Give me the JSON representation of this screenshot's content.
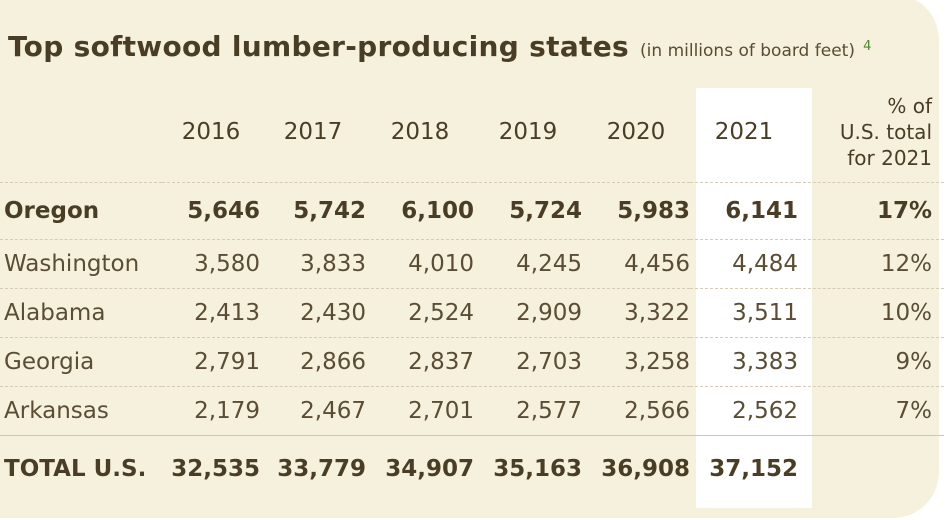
{
  "title": "Top softwood lumber-producing states",
  "subtitle": "(in millions of board feet)",
  "footnote": "4",
  "table": {
    "headers": [
      "2016",
      "2017",
      "2018",
      "2019",
      "2020",
      "2021"
    ],
    "pct_header": [
      "% of",
      "U.S. total",
      "for 2021"
    ],
    "rows": [
      {
        "state": "Oregon",
        "values": [
          "5,646",
          "5,742",
          "6,100",
          "5,724",
          "5,983",
          "6,141"
        ],
        "pct": "17%"
      },
      {
        "state": "Washington",
        "values": [
          "3,580",
          "3,833",
          "4,010",
          "4,245",
          "4,456",
          "4,484"
        ],
        "pct": "12%"
      },
      {
        "state": "Alabama",
        "values": [
          "2,413",
          "2,430",
          "2,524",
          "2,909",
          "3,322",
          "3,511"
        ],
        "pct": "10%"
      },
      {
        "state": "Georgia",
        "values": [
          "2,791",
          "2,866",
          "2,837",
          "2,703",
          "3,258",
          "3,383"
        ],
        "pct": "9%"
      },
      {
        "state": "Arkansas",
        "values": [
          "2,179",
          "2,467",
          "2,701",
          "2,577",
          "2,566",
          "2,562"
        ],
        "pct": "7%"
      }
    ],
    "total": {
      "label": "TOTAL U.S.",
      "values": [
        "32,535",
        "33,779",
        "34,907",
        "35,163",
        "36,908",
        "37,152"
      ]
    }
  },
  "colors": {
    "background": "#f6f1dc",
    "highlight": "#ffffff",
    "footnote": "#4e8a2e",
    "text": "#4a3d26"
  }
}
